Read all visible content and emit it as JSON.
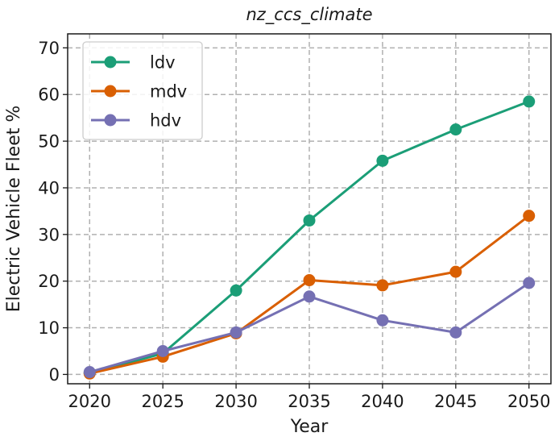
{
  "chart_data": {
    "type": "line",
    "title": "nz_ccs_climate",
    "xlabel": "Year",
    "ylabel": "Electric Vehicle Fleet %",
    "x": [
      2020,
      2025,
      2030,
      2035,
      2040,
      2045,
      2050
    ],
    "xticks": [
      "2020",
      "2025",
      "2030",
      "2035",
      "2040",
      "2045",
      "2050"
    ],
    "yticks": [
      "0",
      "10",
      "20",
      "30",
      "40",
      "50",
      "60",
      "70"
    ],
    "xlim": [
      2018.5,
      2051.5
    ],
    "ylim": [
      -2,
      73
    ],
    "grid": true,
    "legend_position": "top-left",
    "series": [
      {
        "name": "ldv",
        "color": "#1b9e77",
        "values": [
          0.3,
          4.5,
          18.0,
          33.0,
          45.8,
          52.5,
          58.5
        ]
      },
      {
        "name": "mdv",
        "color": "#d95f02",
        "values": [
          0.2,
          3.8,
          8.8,
          20.2,
          19.1,
          22.0,
          34.0
        ]
      },
      {
        "name": "hdv",
        "color": "#7570b3",
        "values": [
          0.5,
          5.0,
          9.0,
          16.7,
          11.6,
          9.0,
          19.6
        ]
      }
    ]
  }
}
